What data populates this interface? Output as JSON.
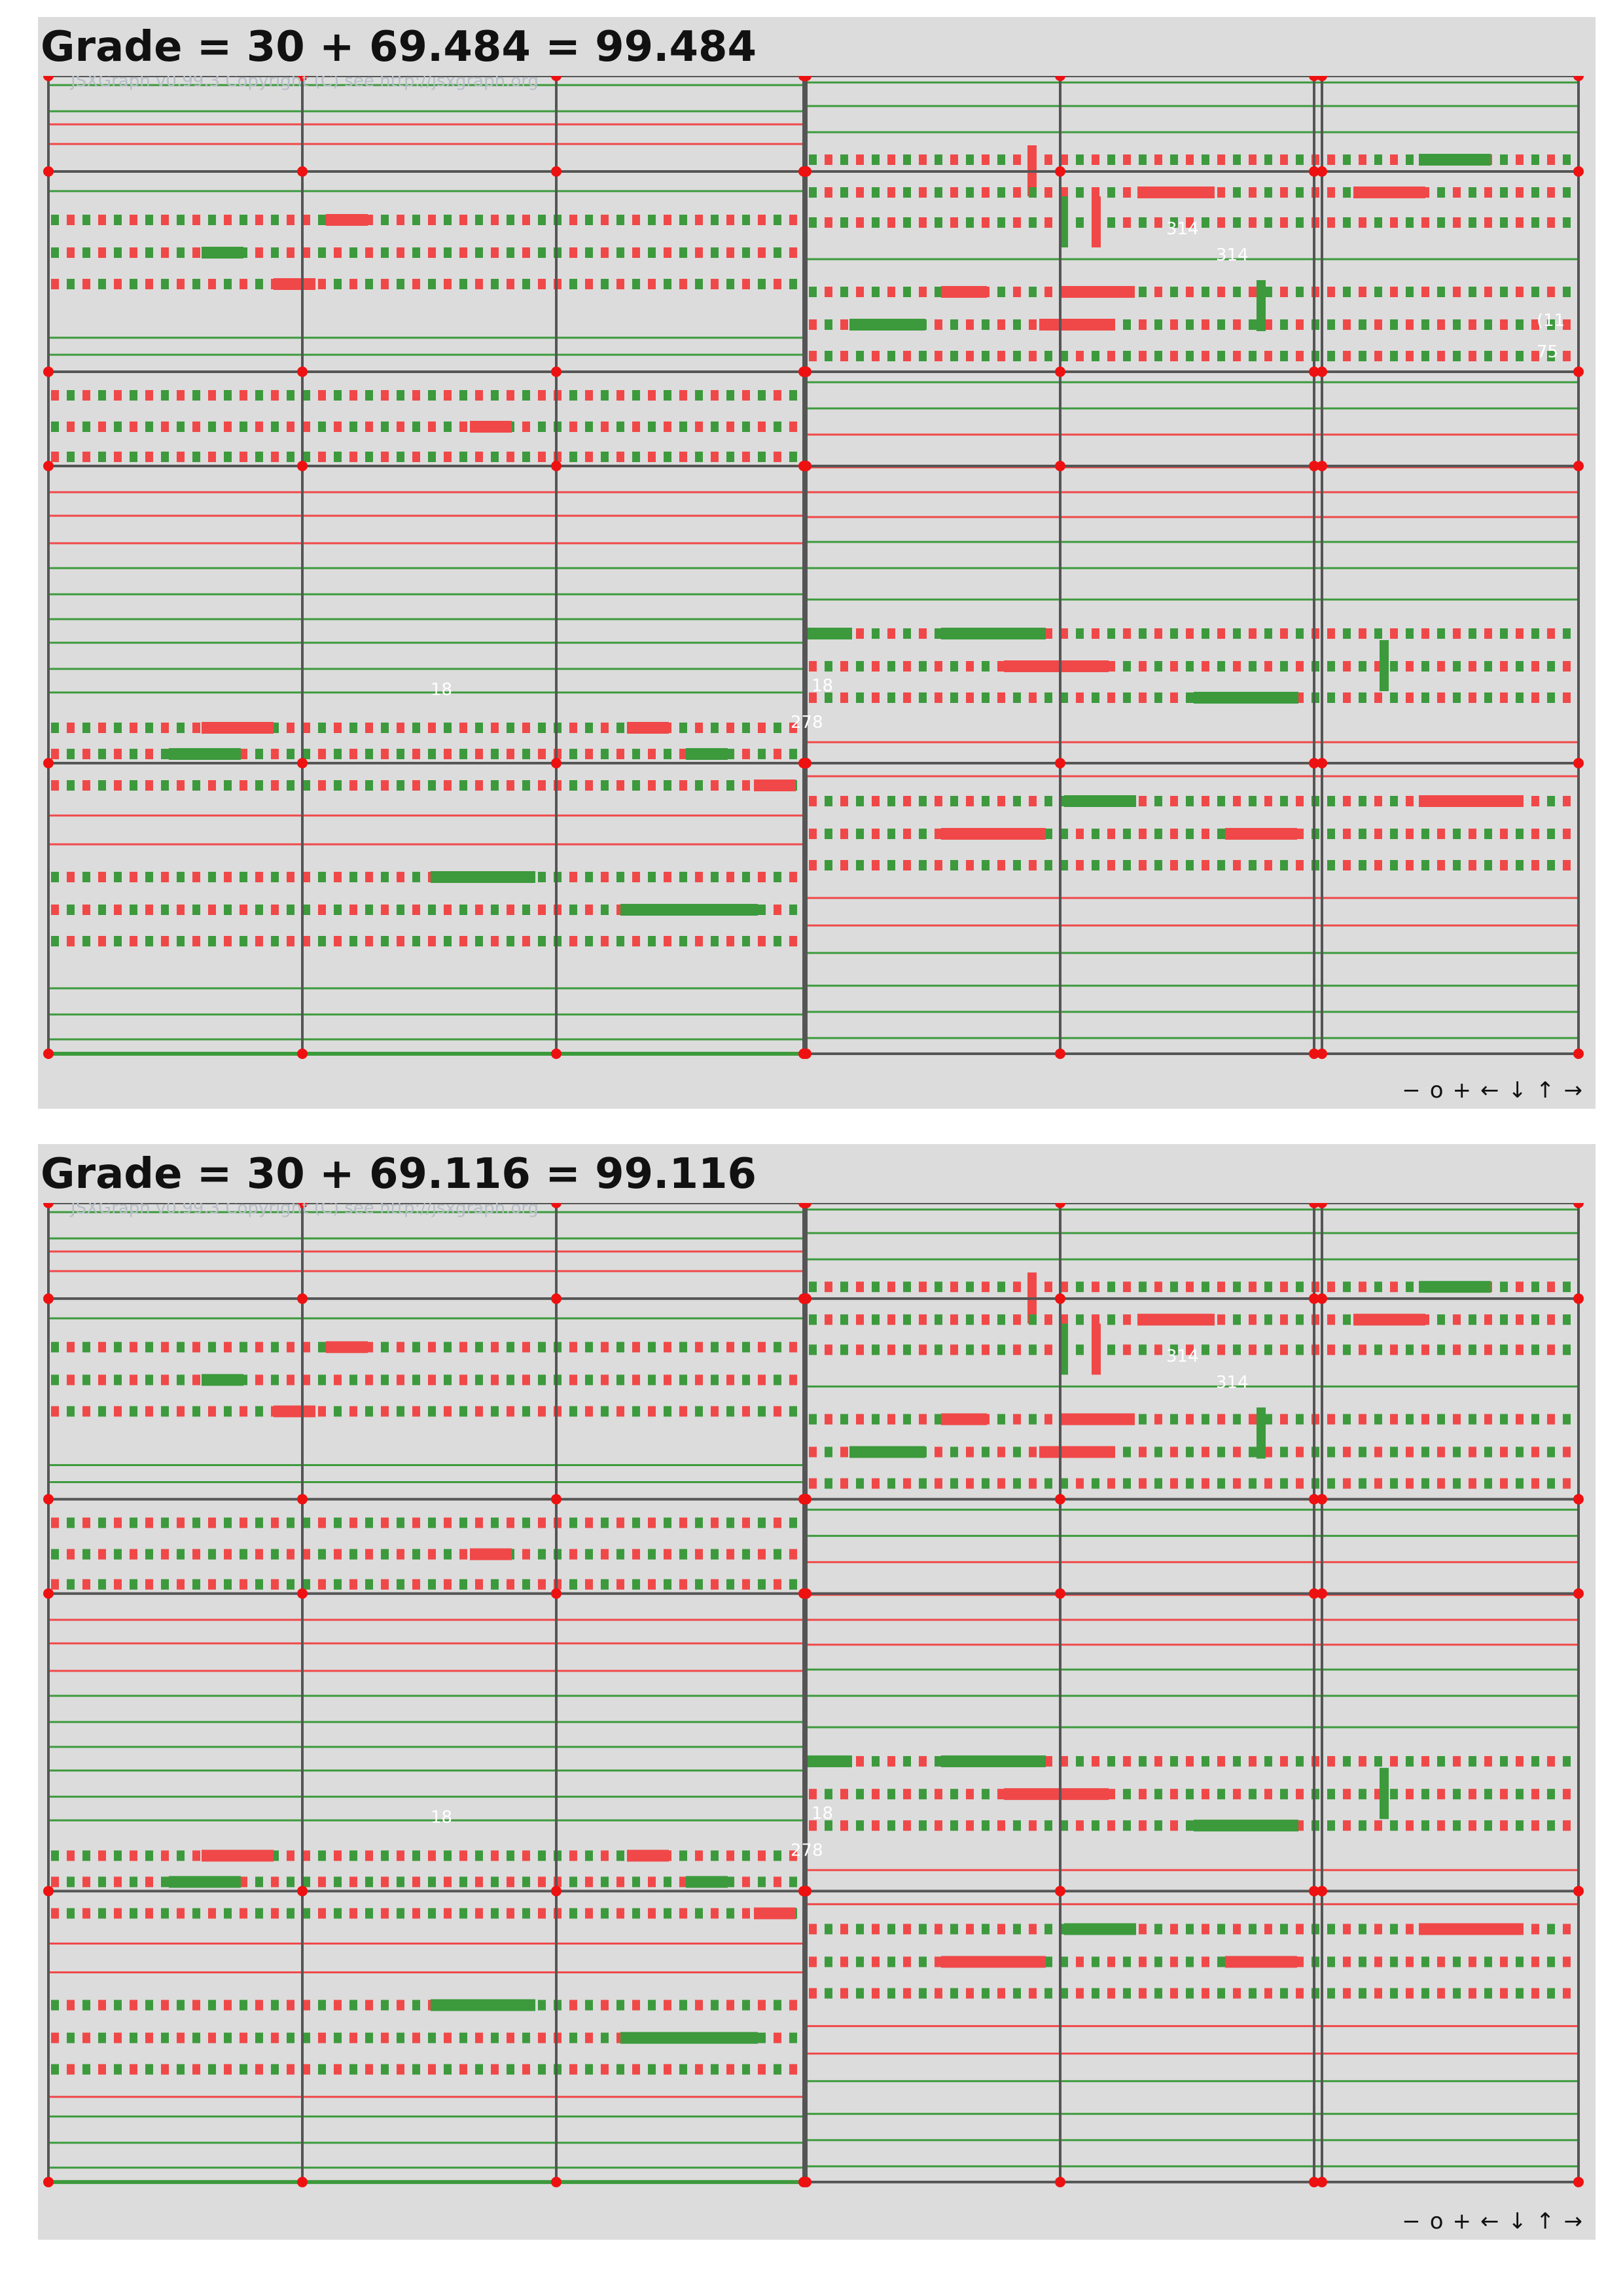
{
  "panels": [
    {
      "grade": "Grade = 30 + 69.484 = 99.484",
      "copyright": "JSXGraph v0.99.3 Copyright (C) see http://jsxgraph.org",
      "labels": {
        "a": "314",
        "b": "314",
        "c": "18",
        "d": "18",
        "e": "278",
        "f": "(11",
        "g": "75"
      }
    },
    {
      "grade": "Grade = 30 + 69.116 = 99.116",
      "copyright": "JSXGraph v0.99.3 Copyright (C) see http://jsxgraph.org",
      "labels": {
        "a": "314",
        "b": "314",
        "c": "18",
        "d": "18",
        "e": "278"
      }
    }
  ],
  "nav": {
    "zoom_out": "−",
    "zoom_reset": "o",
    "zoom_in": "+",
    "left": "←",
    "down": "↓",
    "up": "↑",
    "right": "→"
  },
  "colors": {
    "background": "#dcdcdc",
    "red": "#f04848",
    "green": "#3c9a3c",
    "grid": "#555555",
    "point": "#ee1111"
  }
}
